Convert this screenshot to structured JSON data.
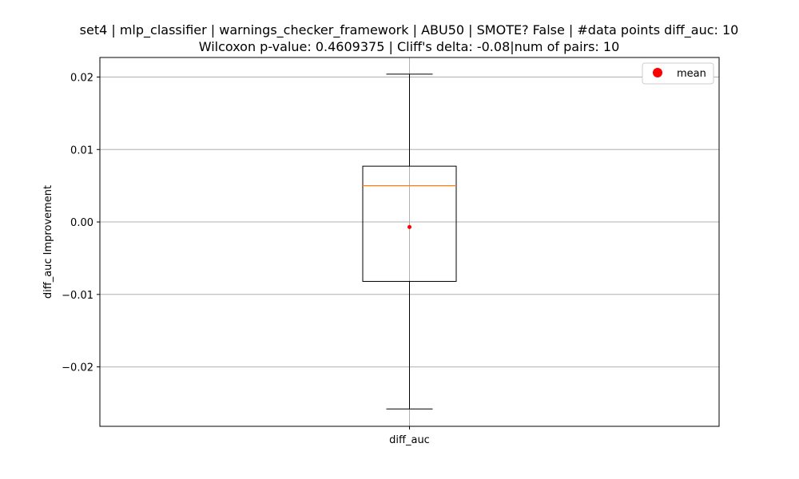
{
  "chart_data": {
    "type": "box",
    "title_line1": "set4 | mlp_classifier | warnings_checker_framework | ABU50 | SMOTE? False | #data points diff_auc: 10",
    "title_line2": "Wilcoxon p-value: 0.4609375 | Cliff's delta: -0.08|num of pairs: 10",
    "xlabel": "",
    "ylabel": "diff_auc Improvement",
    "categories": [
      "diff_auc"
    ],
    "ylim": [
      -0.0282,
      0.0227
    ],
    "yticks": [
      -0.02,
      -0.01,
      0.0,
      0.01,
      0.02
    ],
    "ytick_labels": [
      "−0.02",
      "−0.01",
      "0.00",
      "0.01",
      "0.02"
    ],
    "grid": true,
    "box": {
      "whisker_low": -0.0258,
      "q1": -0.0082,
      "median": 0.005,
      "q3": 0.0077,
      "whisker_high": 0.0204,
      "mean": -0.0007
    },
    "legend": {
      "position": "top-right",
      "entries": [
        {
          "label": "mean",
          "color": "#ff0000"
        }
      ]
    },
    "colors": {
      "box": "#000000",
      "median": "#ff7f0e",
      "mean": "#ff0000",
      "grid": "#b0b0b0"
    }
  }
}
